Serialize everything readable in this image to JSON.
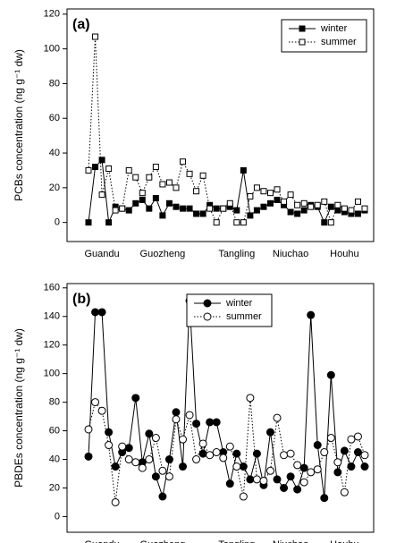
{
  "chart_data": [
    {
      "type": "line",
      "panel_label": "(a)",
      "ylabel": "PCBs concentration (ng g⁻¹ dw)",
      "categories": [
        null,
        null,
        "Guandu",
        null,
        null,
        null,
        null,
        null,
        null,
        null,
        null,
        "Guozheng",
        null,
        null,
        null,
        null,
        null,
        null,
        null,
        null,
        null,
        null,
        "Tangling",
        null,
        null,
        null,
        null,
        null,
        null,
        null,
        "Niuchao",
        null,
        null,
        null,
        null,
        null,
        null,
        null,
        "Houhu",
        null,
        null,
        null
      ],
      "series": [
        {
          "name": "winter",
          "color": "#000000",
          "marker": "square",
          "filled": true,
          "linestyle": "solid",
          "values": [
            0,
            32,
            36,
            0,
            9,
            8,
            7,
            11,
            13,
            8,
            14,
            4,
            11,
            9,
            8,
            8,
            5,
            5,
            10,
            8,
            8,
            9,
            7,
            30,
            4,
            7,
            9,
            11,
            13,
            10,
            6,
            5,
            7,
            10,
            9,
            0,
            9,
            7,
            6,
            5,
            5,
            7
          ]
        },
        {
          "name": "summer",
          "color": "#000000",
          "marker": "square",
          "filled": false,
          "linestyle": "dotted",
          "values": [
            30,
            107,
            16,
            31,
            7,
            8,
            30,
            26,
            17,
            26,
            32,
            22,
            23,
            20,
            35,
            28,
            18,
            27,
            8,
            0,
            8,
            11,
            0,
            0,
            15,
            20,
            18,
            17,
            19,
            12,
            16,
            10,
            11,
            9,
            10,
            12,
            0,
            10,
            8,
            7,
            12,
            8
          ]
        }
      ],
      "ylim": [
        -11,
        123
      ],
      "yticks": [
        0,
        20,
        40,
        60,
        80,
        100,
        120
      ],
      "legend": "upper right"
    },
    {
      "type": "line",
      "panel_label": "(b)",
      "ylabel": "PBDEs concentration (ng g⁻¹ dw)",
      "categories": [
        null,
        null,
        "Guandu",
        null,
        null,
        null,
        null,
        null,
        null,
        null,
        null,
        "Guozheng",
        null,
        null,
        null,
        null,
        null,
        null,
        null,
        null,
        null,
        null,
        "Tangling",
        null,
        null,
        null,
        null,
        null,
        null,
        null,
        "Niuchao",
        null,
        null,
        null,
        null,
        null,
        null,
        null,
        "Houhu",
        null,
        null,
        null
      ],
      "series": [
        {
          "name": "winter",
          "color": "#000000",
          "marker": "circle",
          "filled": true,
          "linestyle": "solid",
          "values": [
            42,
            143,
            143,
            59,
            35,
            45,
            48,
            83,
            38,
            58,
            28,
            14,
            40,
            73,
            35,
            151,
            65,
            44,
            66,
            66,
            45,
            23,
            44,
            35,
            26,
            44,
            22,
            59,
            26,
            20,
            28,
            19,
            34,
            141,
            50,
            13,
            99,
            31,
            46,
            35,
            45,
            35
          ]
        },
        {
          "name": "summer",
          "color": "#000000",
          "marker": "circle",
          "filled": false,
          "linestyle": "dotted",
          "values": [
            61,
            80,
            74,
            50,
            10,
            49,
            40,
            38,
            34,
            40,
            55,
            32,
            28,
            68,
            54,
            71,
            40,
            51,
            43,
            45,
            41,
            49,
            35,
            14,
            83,
            26,
            25,
            32,
            69,
            43,
            44,
            36,
            24,
            31,
            33,
            45,
            55,
            38,
            17,
            54,
            56,
            43
          ]
        }
      ],
      "ylim": [
        -11,
        163
      ],
      "yticks": [
        0,
        20,
        40,
        60,
        80,
        100,
        120,
        140,
        160
      ],
      "legend": "upper center"
    }
  ]
}
